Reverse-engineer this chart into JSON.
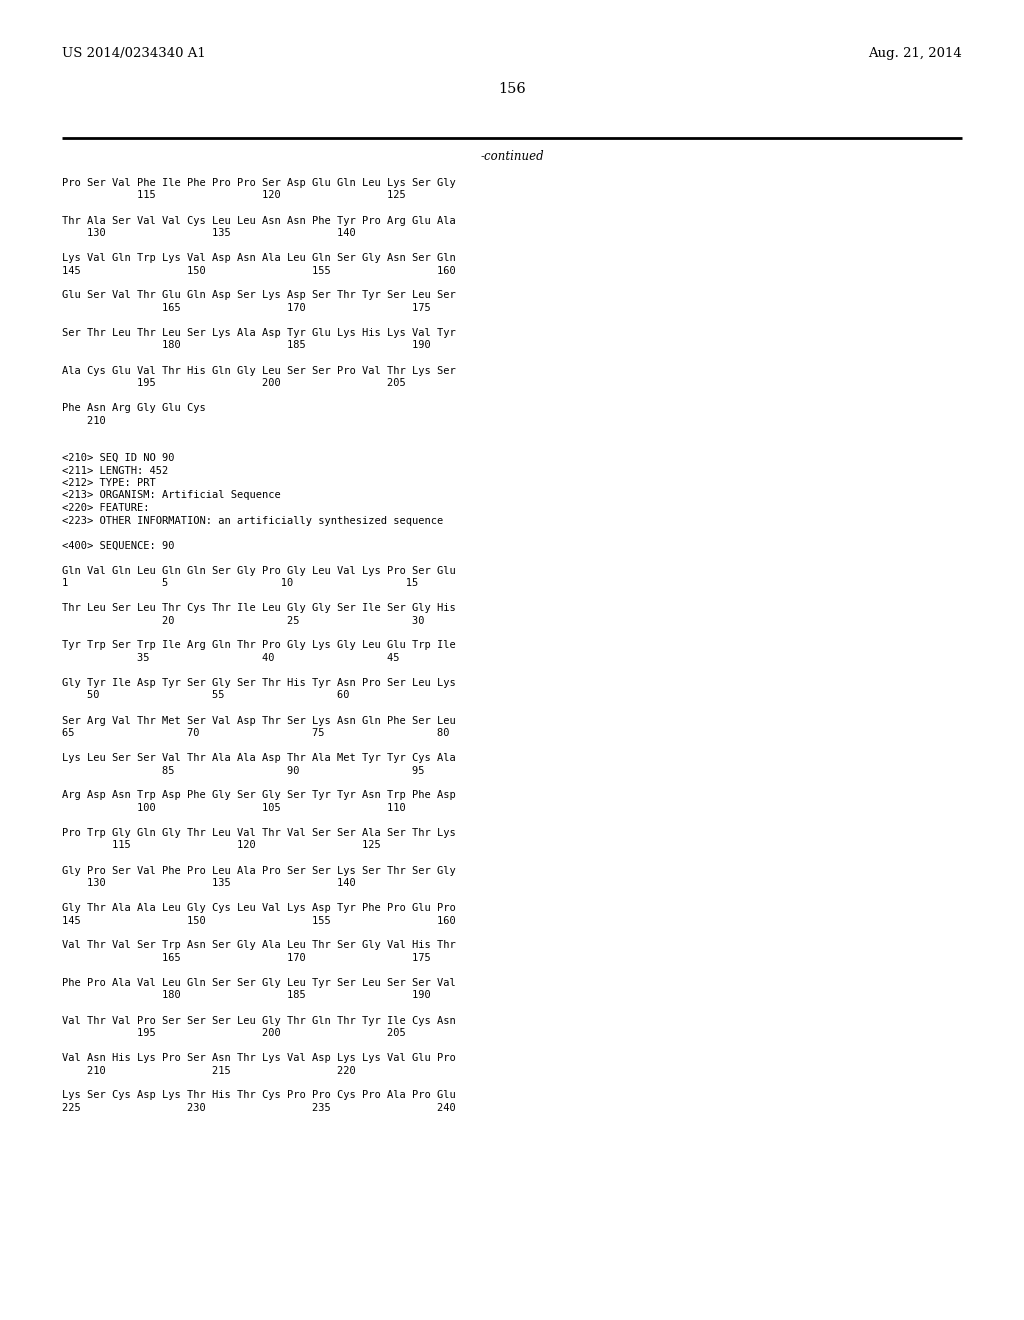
{
  "header_left": "US 2014/0234340 A1",
  "header_right": "Aug. 21, 2014",
  "page_number": "156",
  "continued_text": "-continued",
  "background_color": "#ffffff",
  "text_color": "#000000",
  "mono_font_size": 7.5,
  "header_font_size": 9.5,
  "page_num_font_size": 10.5,
  "lines": [
    "Pro Ser Val Phe Ile Phe Pro Pro Ser Asp Glu Gln Leu Lys Ser Gly",
    "            115                 120                 125",
    "",
    "Thr Ala Ser Val Val Cys Leu Leu Asn Asn Phe Tyr Pro Arg Glu Ala",
    "    130                 135                 140",
    "",
    "Lys Val Gln Trp Lys Val Asp Asn Ala Leu Gln Ser Gly Asn Ser Gln",
    "145                 150                 155                 160",
    "",
    "Glu Ser Val Thr Glu Gln Asp Ser Lys Asp Ser Thr Tyr Ser Leu Ser",
    "                165                 170                 175",
    "",
    "Ser Thr Leu Thr Leu Ser Lys Ala Asp Tyr Glu Lys His Lys Val Tyr",
    "                180                 185                 190",
    "",
    "Ala Cys Glu Val Thr His Gln Gly Leu Ser Ser Pro Val Thr Lys Ser",
    "            195                 200                 205",
    "",
    "Phe Asn Arg Gly Glu Cys",
    "    210",
    "",
    "",
    "<210> SEQ ID NO 90",
    "<211> LENGTH: 452",
    "<212> TYPE: PRT",
    "<213> ORGANISM: Artificial Sequence",
    "<220> FEATURE:",
    "<223> OTHER INFORMATION: an artificially synthesized sequence",
    "",
    "<400> SEQUENCE: 90",
    "",
    "Gln Val Gln Leu Gln Gln Ser Gly Pro Gly Leu Val Lys Pro Ser Glu",
    "1               5                  10                  15",
    "",
    "Thr Leu Ser Leu Thr Cys Thr Ile Leu Gly Gly Ser Ile Ser Gly His",
    "                20                  25                  30",
    "",
    "Tyr Trp Ser Trp Ile Arg Gln Thr Pro Gly Lys Gly Leu Glu Trp Ile",
    "            35                  40                  45",
    "",
    "Gly Tyr Ile Asp Tyr Ser Gly Ser Thr His Tyr Asn Pro Ser Leu Lys",
    "    50                  55                  60",
    "",
    "Ser Arg Val Thr Met Ser Val Asp Thr Ser Lys Asn Gln Phe Ser Leu",
    "65                  70                  75                  80",
    "",
    "Lys Leu Ser Ser Val Thr Ala Ala Asp Thr Ala Met Tyr Tyr Cys Ala",
    "                85                  90                  95",
    "",
    "Arg Asp Asn Trp Asp Phe Gly Ser Gly Ser Tyr Tyr Asn Trp Phe Asp",
    "            100                 105                 110",
    "",
    "Pro Trp Gly Gln Gly Thr Leu Val Thr Val Ser Ser Ala Ser Thr Lys",
    "        115                 120                 125",
    "",
    "Gly Pro Ser Val Phe Pro Leu Ala Pro Ser Ser Lys Ser Thr Ser Gly",
    "    130                 135                 140",
    "",
    "Gly Thr Ala Ala Leu Gly Cys Leu Val Lys Asp Tyr Phe Pro Glu Pro",
    "145                 150                 155                 160",
    "",
    "Val Thr Val Ser Trp Asn Ser Gly Ala Leu Thr Ser Gly Val His Thr",
    "                165                 170                 175",
    "",
    "Phe Pro Ala Val Leu Gln Ser Ser Gly Leu Tyr Ser Leu Ser Ser Val",
    "                180                 185                 190",
    "",
    "Val Thr Val Pro Ser Ser Ser Leu Gly Thr Gln Thr Tyr Ile Cys Asn",
    "            195                 200                 205",
    "",
    "Val Asn His Lys Pro Ser Asn Thr Lys Val Asp Lys Lys Val Glu Pro",
    "    210                 215                 220",
    "",
    "Lys Ser Cys Asp Lys Thr His Thr Cys Pro Pro Cys Pro Ala Pro Glu",
    "225                 230                 235                 240"
  ]
}
